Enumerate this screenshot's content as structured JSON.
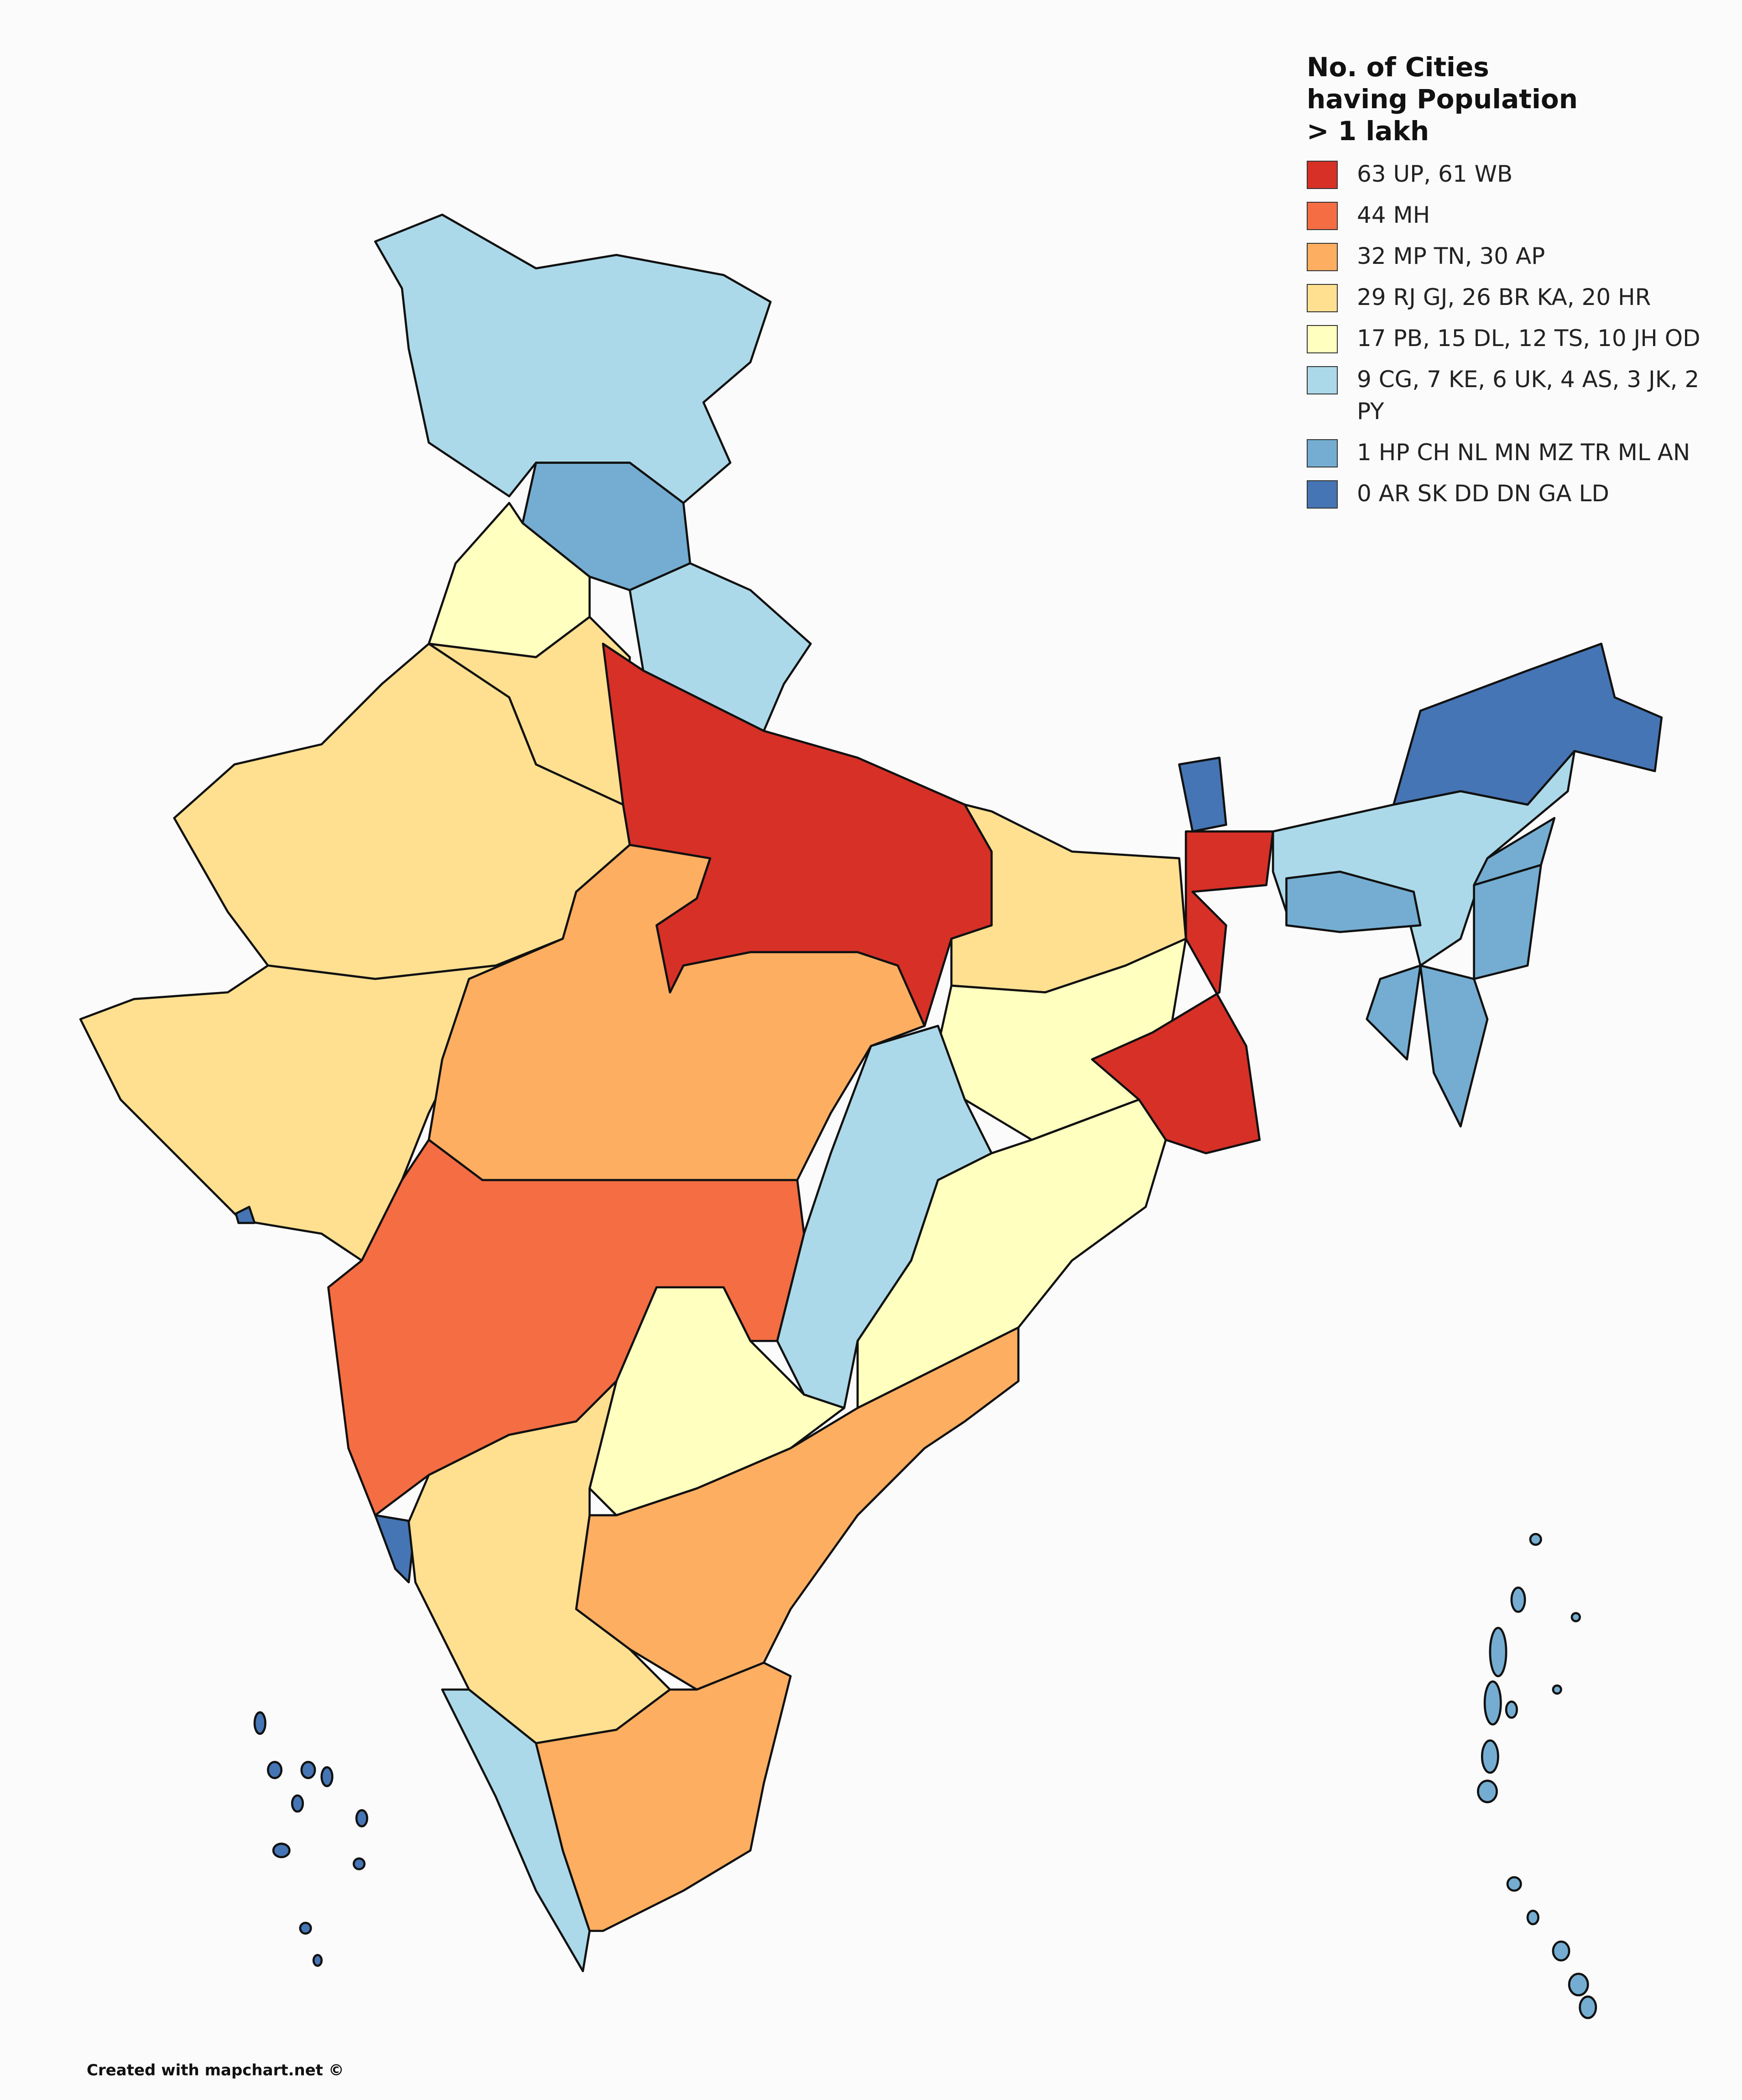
{
  "legend": {
    "title": "No. of Cities having Population > 1 lakh",
    "items": [
      {
        "label": "63 UP, 61 WB",
        "color": "#d73027"
      },
      {
        "label": "44 MH",
        "color": "#f46d43"
      },
      {
        "label": "32 MP TN, 30 AP",
        "color": "#fdae61"
      },
      {
        "label": "29 RJ GJ, 26 BR KA, 20 HR",
        "color": "#fee090"
      },
      {
        "label": "17 PB, 15 DL, 12 TS, 10 JH OD",
        "color": "#ffffbf"
      },
      {
        "label": "9 CG, 7 KE, 6 UK, 4 AS, 3 JK, 2 PY",
        "color": "#abd9e9"
      },
      {
        "label": "1 HP CH NL MN MZ TR ML AN",
        "color": "#74add1"
      },
      {
        "label": "0 AR SK DD DN GA LD",
        "color": "#4575b4"
      }
    ]
  },
  "footer": "Created with mapchart.net ©"
}
